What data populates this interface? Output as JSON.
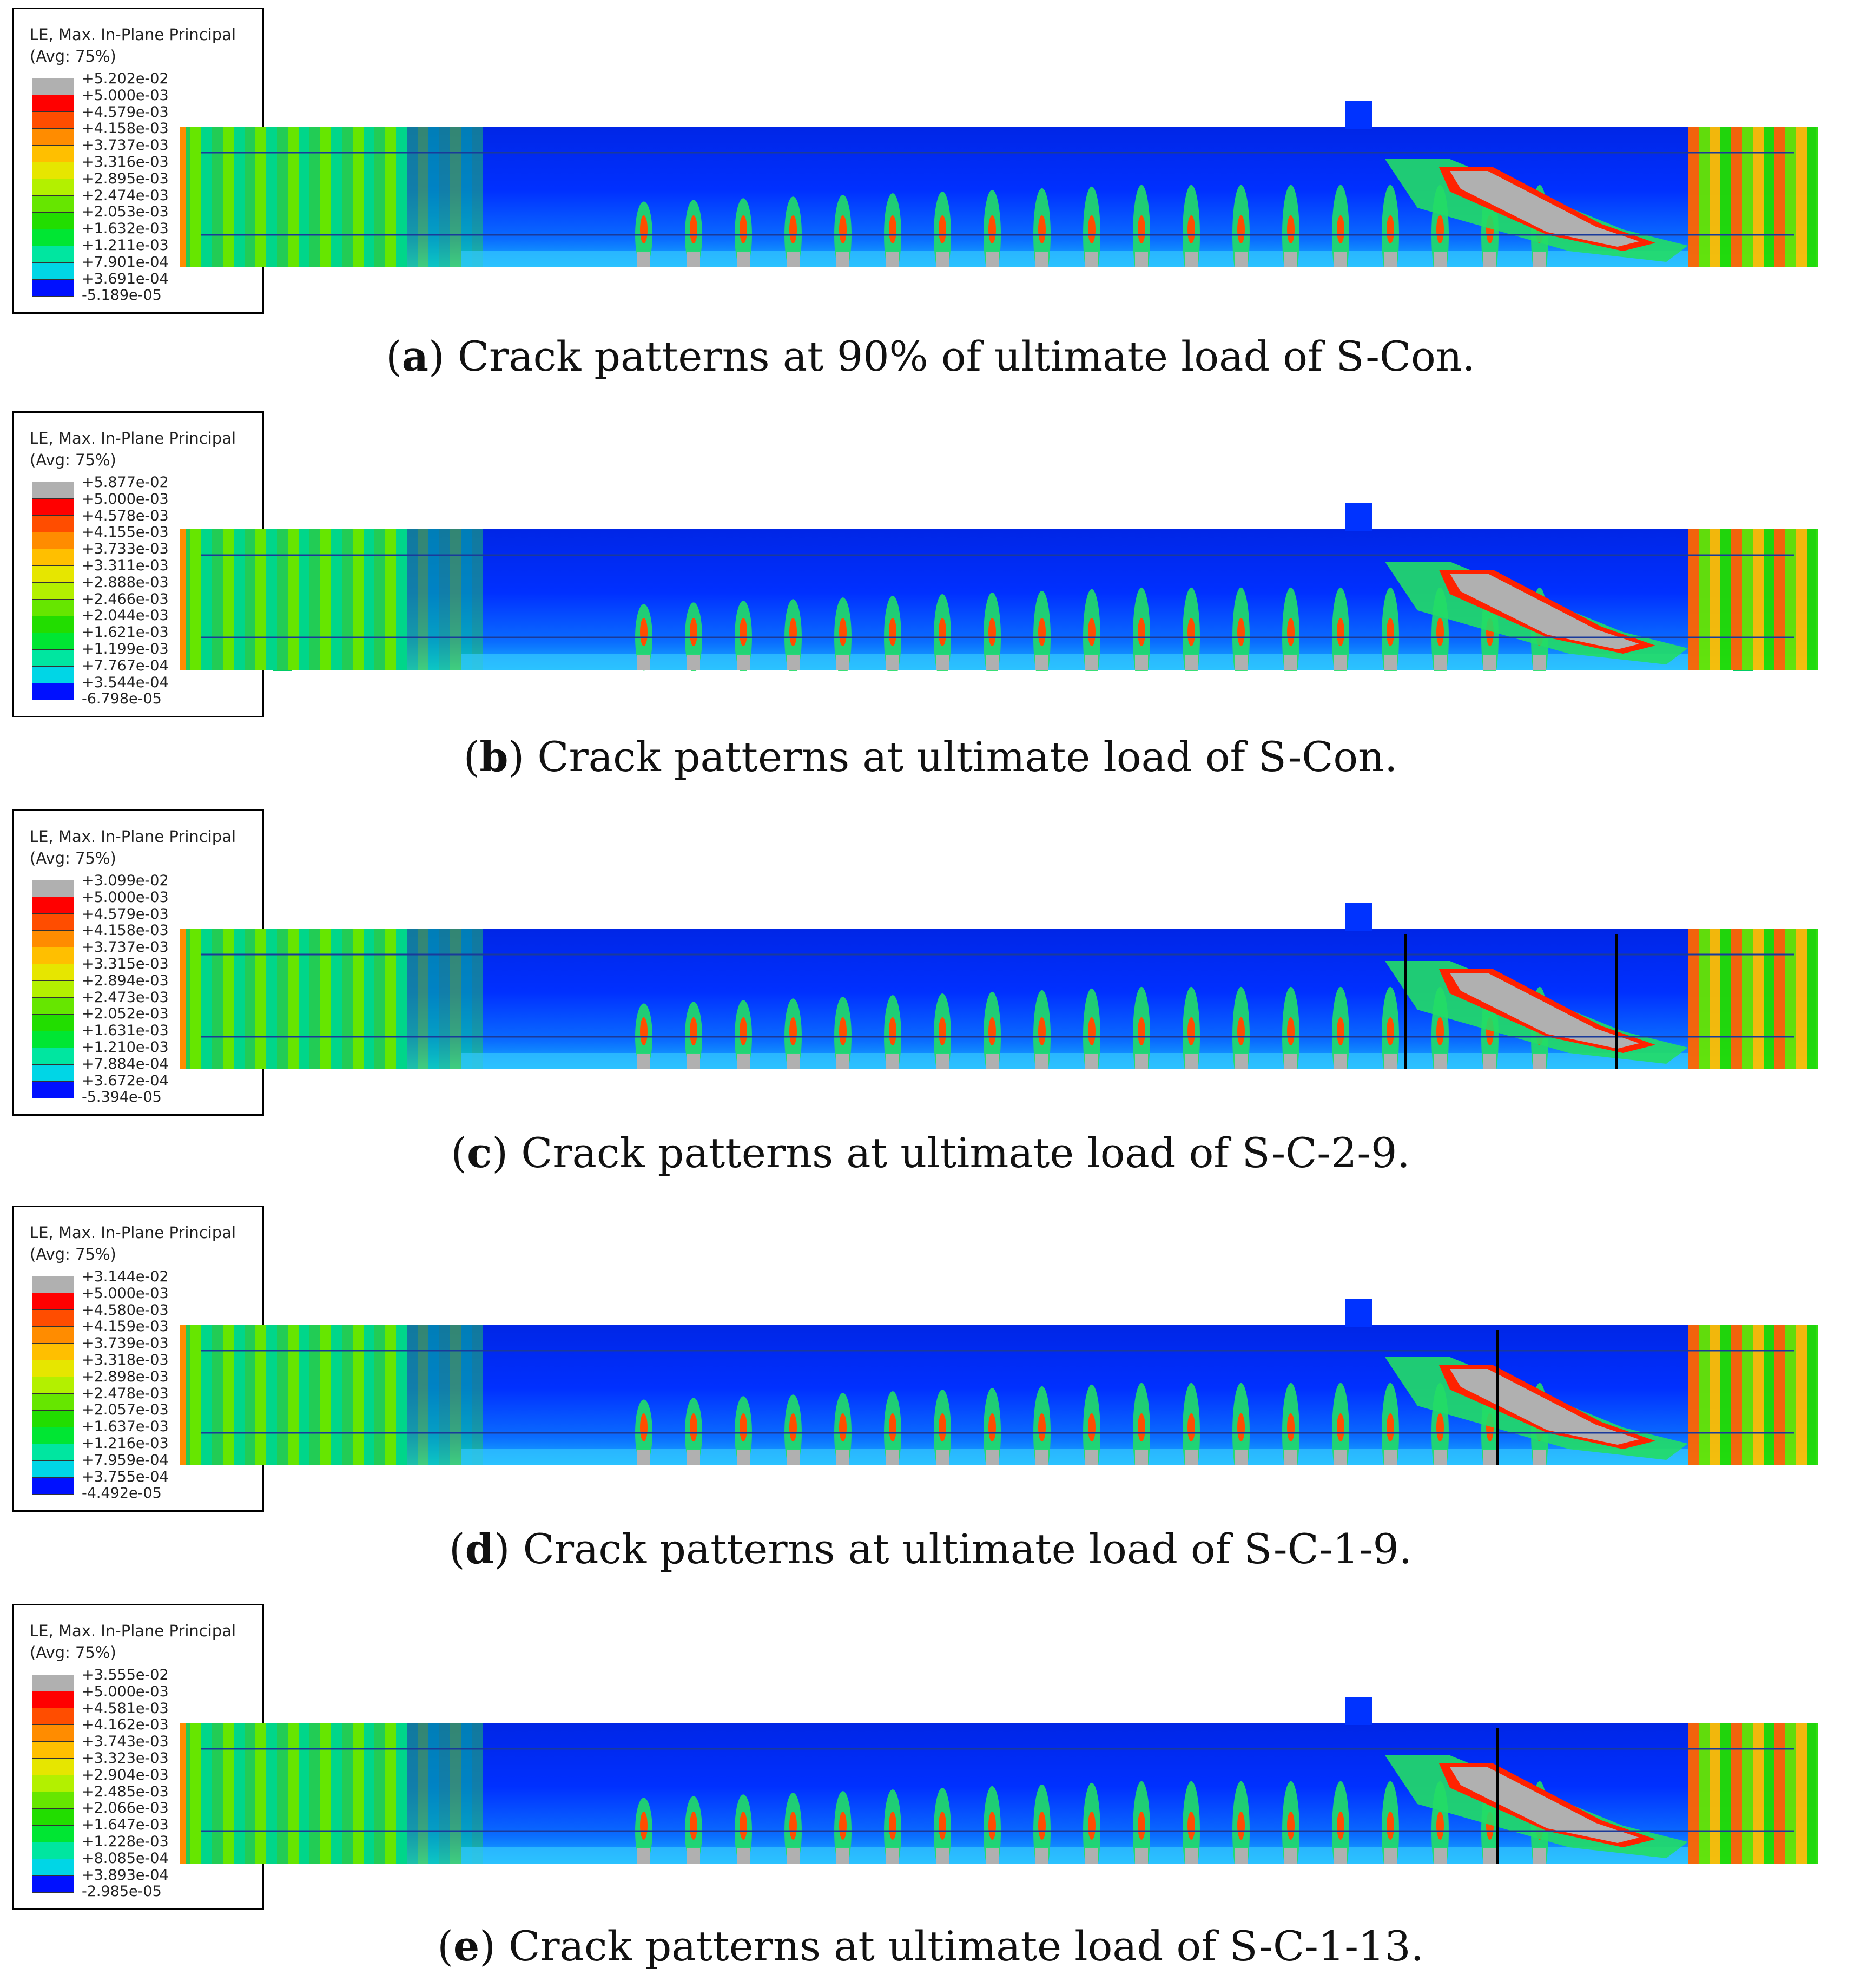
{
  "legend_title_1": "LE, Max. In-Plane Principal",
  "legend_title_2": "(Avg: 75%)",
  "legend_colors": [
    "#b0b0b0",
    "#ff0000",
    "#ff4d00",
    "#ff8c00",
    "#ffbf00",
    "#e6e600",
    "#b3f000",
    "#66e600",
    "#22dd00",
    "#00e633",
    "#00e6a0",
    "#00d6e6",
    "#0099ff",
    "#0055ff",
    "#0020ff"
  ],
  "panels": [
    {
      "label": "a",
      "caption": "Crack patterns at 90% of ultimate load of S-Con.",
      "legend_values": [
        "+5.202e-02",
        "+5.000e-03",
        "+4.579e-03",
        "+4.158e-03",
        "+3.737e-03",
        "+3.316e-03",
        "+2.895e-03",
        "+2.474e-03",
        "+2.053e-03",
        "+1.632e-03",
        "+1.211e-03",
        "+7.901e-04",
        "+3.691e-04",
        "-5.189e-05"
      ]
    },
    {
      "label": "b",
      "caption": "Crack patterns at ultimate load of S-Con.",
      "legend_values": [
        "+5.877e-02",
        "+5.000e-03",
        "+4.578e-03",
        "+4.155e-03",
        "+3.733e-03",
        "+3.311e-03",
        "+2.888e-03",
        "+2.466e-03",
        "+2.044e-03",
        "+1.621e-03",
        "+1.199e-03",
        "+7.767e-04",
        "+3.544e-04",
        "-6.798e-05"
      ]
    },
    {
      "label": "c",
      "caption": "Crack patterns at ultimate load of S-C-2-9.",
      "legend_values": [
        "+3.099e-02",
        "+5.000e-03",
        "+4.579e-03",
        "+4.158e-03",
        "+3.737e-03",
        "+3.315e-03",
        "+2.894e-03",
        "+2.473e-03",
        "+2.052e-03",
        "+1.631e-03",
        "+1.210e-03",
        "+7.884e-04",
        "+3.672e-04",
        "-5.394e-05"
      ]
    },
    {
      "label": "d",
      "caption": "Crack patterns at ultimate load of S-C-1-9.",
      "legend_values": [
        "+3.144e-02",
        "+5.000e-03",
        "+4.580e-03",
        "+4.159e-03",
        "+3.739e-03",
        "+3.318e-03",
        "+2.898e-03",
        "+2.478e-03",
        "+2.057e-03",
        "+1.637e-03",
        "+1.216e-03",
        "+7.959e-04",
        "+3.755e-04",
        "-4.492e-05"
      ]
    },
    {
      "label": "e",
      "caption": "Crack patterns at ultimate load of S-C-1-13.",
      "legend_values": [
        "+3.555e-02",
        "+5.000e-03",
        "+4.581e-03",
        "+4.162e-03",
        "+3.743e-03",
        "+3.323e-03",
        "+2.904e-03",
        "+2.485e-03",
        "+2.066e-03",
        "+1.647e-03",
        "+1.228e-03",
        "+8.085e-04",
        "+3.893e-04",
        "-2.985e-05"
      ]
    }
  ]
}
